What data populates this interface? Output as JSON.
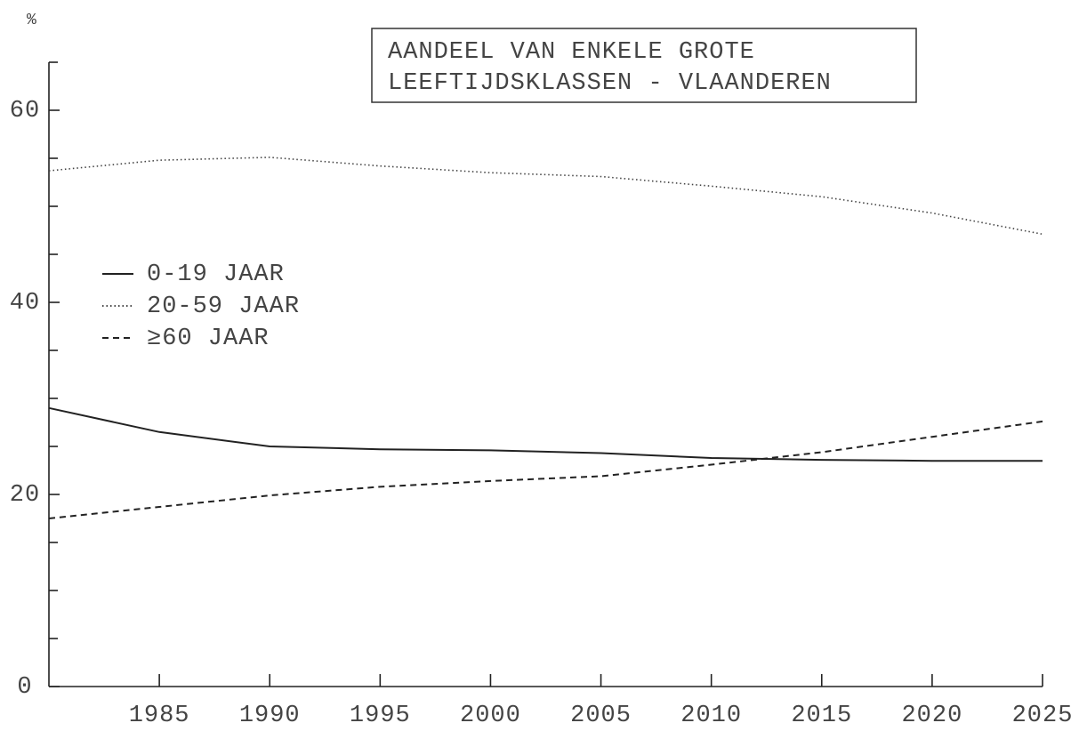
{
  "chart_data": {
    "type": "line",
    "title_lines": [
      "AANDEEL VAN ENKELE GROTE",
      "LEEFTIJDSKLASSEN - VLAANDEREN"
    ],
    "y_label": "%",
    "x": [
      1980,
      1985,
      1990,
      1995,
      2000,
      2005,
      2010,
      2015,
      2020,
      2025
    ],
    "series": [
      {
        "name": "0-19 JAAR",
        "color": "#222222",
        "dash": "solid",
        "values": [
          29.0,
          26.5,
          25.0,
          24.7,
          24.6,
          24.3,
          23.8,
          23.6,
          23.5,
          23.5
        ]
      },
      {
        "name": "20-59 JAAR",
        "color": "#444444",
        "dash": "dotted",
        "values": [
          53.7,
          54.8,
          55.1,
          54.2,
          53.5,
          53.1,
          52.1,
          51.0,
          49.3,
          47.1
        ]
      },
      {
        "name": "≥60 JAAR",
        "color": "#222222",
        "dash": "dashed",
        "values": [
          17.5,
          18.7,
          19.9,
          20.8,
          21.4,
          21.9,
          23.1,
          24.4,
          26.0,
          27.6
        ]
      }
    ],
    "xlim": [
      1980,
      2025
    ],
    "xticks": [
      1985,
      1990,
      1995,
      2000,
      2005,
      2010,
      2015,
      2020,
      2025
    ],
    "ylim": [
      0,
      65
    ],
    "yticks": [
      0,
      20,
      40,
      60
    ],
    "yminorticks": [
      5,
      10,
      15,
      25,
      30,
      35,
      45,
      50,
      55,
      65
    ],
    "grid": false
  }
}
